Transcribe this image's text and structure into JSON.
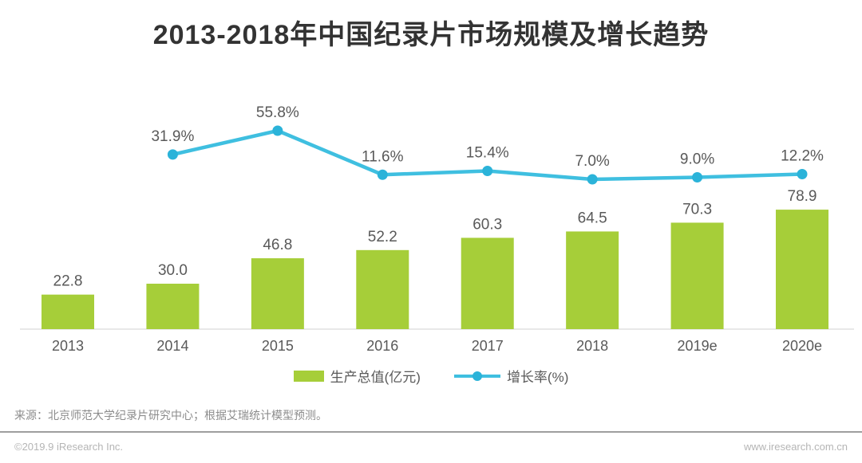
{
  "title": "2013-2018年中国纪录片市场规模及增长趋势",
  "chart_data": {
    "type": "bar",
    "categories": [
      "2013",
      "2014",
      "2015",
      "2016",
      "2017",
      "2018",
      "2019e",
      "2020e"
    ],
    "series": [
      {
        "name": "生产总值(亿元)",
        "type": "bar",
        "values": [
          22.8,
          30.0,
          46.8,
          52.2,
          60.3,
          64.5,
          70.3,
          78.9
        ],
        "labels": [
          "22.8",
          "30.0",
          "46.8",
          "52.2",
          "60.3",
          "64.5",
          "70.3",
          "78.9"
        ],
        "color": "#a6ce39"
      },
      {
        "name": "增长率(%)",
        "type": "line",
        "start_index": 1,
        "values": [
          31.9,
          55.8,
          11.6,
          15.4,
          7.0,
          9.0,
          12.2
        ],
        "labels": [
          "31.9%",
          "55.8%",
          "11.6%",
          "15.4%",
          "7.0%",
          "9.0%",
          "12.2%"
        ],
        "color": "#3fbfe0",
        "dot_color": "#2bb3d9"
      }
    ],
    "title": "2013-2018年中国纪录片市场规模及增长趋势",
    "xlabel": "",
    "ylabel": "",
    "grid": false,
    "legend_position": "bottom",
    "axis_line_color": "#e0e0e0",
    "label_color": "#595959"
  },
  "source_note": "来源：北京师范大学纪录片研究中心；根据艾瑞统计模型预测。",
  "footer": {
    "copyright": "©2019.9 iResearch Inc.",
    "website": "www.iresearch.com.cn"
  }
}
